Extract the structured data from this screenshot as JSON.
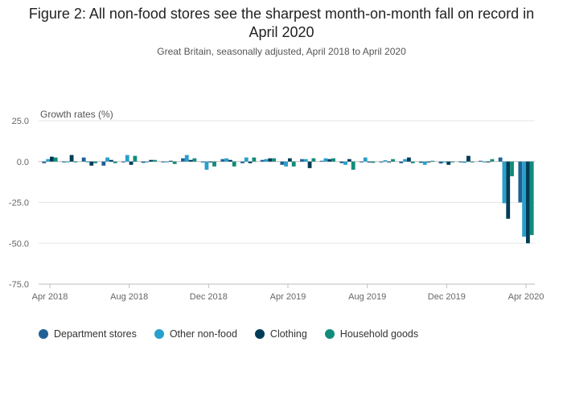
{
  "title": "Figure 2: All non-food stores see the sharpest month-on-month fall on record in April 2020",
  "subtitle": "Great Britain, seasonally adjusted, April 2018 to April 2020",
  "chart_data": {
    "type": "bar",
    "ylabel": "Growth rates (%)",
    "ylim": [
      -75,
      25
    ],
    "yticks": [
      "25.0",
      "0.0",
      "-25.0",
      "-50.0",
      "-75.0"
    ],
    "ytick_values": [
      25,
      0,
      -25,
      -50,
      -75
    ],
    "grid": true,
    "legend_position": "bottom",
    "categories": [
      "Apr 2018",
      "May 2018",
      "Jun 2018",
      "Jul 2018",
      "Aug 2018",
      "Sep 2018",
      "Oct 2018",
      "Nov 2018",
      "Dec 2018",
      "Jan 2019",
      "Feb 2019",
      "Mar 2019",
      "Apr 2019",
      "May 2019",
      "Jun 2019",
      "Jul 2019",
      "Aug 2019",
      "Sep 2019",
      "Oct 2019",
      "Nov 2019",
      "Dec 2019",
      "Jan 2020",
      "Feb 2020",
      "Mar 2020",
      "Apr 2020"
    ],
    "xtick_labels": [
      "Apr 2018",
      "Aug 2018",
      "Dec 2018",
      "Apr 2019",
      "Aug 2019",
      "Dec 2019",
      "Apr 2020"
    ],
    "xtick_indices": [
      0,
      4,
      8,
      12,
      16,
      20,
      24
    ],
    "series": [
      {
        "name": "Department stores",
        "color": "#206095",
        "values": [
          -1.0,
          -0.5,
          2.5,
          -2.5,
          -0.5,
          -0.8,
          -0.5,
          2.0,
          -0.5,
          1.5,
          -1.0,
          1.0,
          -2.0,
          1.5,
          0.5,
          -1.0,
          -0.5,
          -0.5,
          -1.0,
          -0.8,
          -1.2,
          -0.5,
          0.5,
          2.5,
          -25.0
        ]
      },
      {
        "name": "Other non-food",
        "color": "#27a0cc",
        "values": [
          1.5,
          -0.5,
          -0.5,
          2.5,
          4.0,
          -0.5,
          -0.5,
          4.0,
          -5.0,
          2.0,
          2.5,
          1.5,
          -3.0,
          1.5,
          2.0,
          -2.0,
          2.5,
          0.8,
          1.5,
          -2.0,
          -0.5,
          -0.8,
          -0.5,
          -25.5,
          -46.0
        ]
      },
      {
        "name": "Clothing",
        "color": "#003c57",
        "values": [
          3.0,
          4.0,
          -2.5,
          1.0,
          -2.0,
          1.0,
          0.5,
          1.0,
          -0.5,
          1.0,
          -1.0,
          2.0,
          2.0,
          -4.0,
          1.5,
          1.5,
          -0.5,
          -0.5,
          2.5,
          -0.5,
          -2.0,
          3.5,
          -0.5,
          -35.0,
          -50.0
        ]
      },
      {
        "name": "Household goods",
        "color": "#118c7b",
        "values": [
          2.5,
          -0.5,
          -1.0,
          -1.0,
          3.5,
          1.0,
          -1.5,
          2.0,
          -3.0,
          -3.0,
          2.5,
          2.0,
          -3.0,
          2.0,
          2.0,
          -5.0,
          -0.8,
          1.5,
          -1.0,
          0.5,
          -0.5,
          -0.5,
          1.5,
          -9.0,
          -45.0
        ]
      }
    ]
  }
}
